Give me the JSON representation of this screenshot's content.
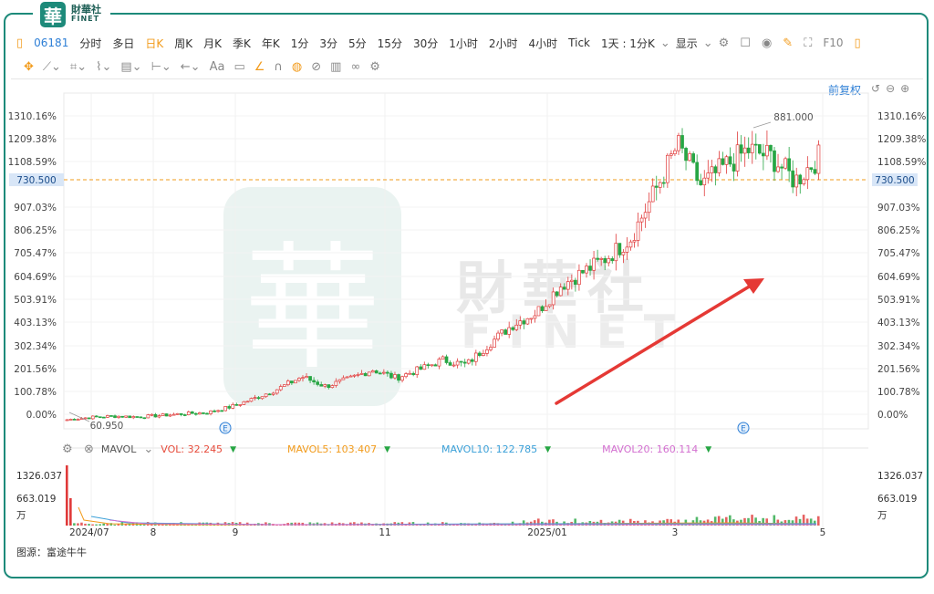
{
  "logo": {
    "mark": "華",
    "cn": "財華社",
    "en": "FINET"
  },
  "toolbar": {
    "code": "06181",
    "periods": [
      "分时",
      "多日",
      "日K",
      "周K",
      "月K",
      "季K",
      "年K",
      "1分",
      "3分",
      "5分",
      "15分",
      "30分",
      "1小时",
      "2小时",
      "4小时",
      "Tick"
    ],
    "active_period": "日K",
    "combo": "1天 : 1分K",
    "display": "显示",
    "f10": "F10"
  },
  "restore_label": "前复权",
  "price_axis": {
    "labels": [
      "1310.16%",
      "1209.38%",
      "1108.59%",
      "907.03%",
      "806.25%",
      "705.47%",
      "604.69%",
      "503.91%",
      "403.13%",
      "302.34%",
      "201.56%",
      "100.78%",
      "0.00%"
    ],
    "current": "730.500"
  },
  "annotations": {
    "high": "881.000",
    "low": "60.950",
    "event_marker": "E"
  },
  "watermark": {
    "cn": "財華社",
    "en": "FINET",
    "mark": "華"
  },
  "indicator": {
    "name": "MAVOL",
    "vol": "VOL: 32.245",
    "mavol5": "MAVOL5: 103.407",
    "mavol10": "MAVOL10: 122.785",
    "mavol20": "MAVOL20: 160.114"
  },
  "volume_axis": {
    "labels": [
      "1326.037",
      "663.019",
      "万"
    ]
  },
  "time_axis": [
    "2024/07",
    "8",
    "9",
    "11",
    "2025/01",
    "3",
    "5"
  ],
  "source": "图源：富途牛牛",
  "colors": {
    "up": "#e03a3a",
    "down": "#27a644",
    "accent": "#f29b1b",
    "frame": "#1d8a7a"
  },
  "chart_data": {
    "type": "candlestick",
    "base_price": 60.95,
    "current_price": 730.5,
    "high": 881.0,
    "low": 60.95,
    "y_axis_unit": "percent change from base",
    "ylim": [
      0,
      1310.16
    ],
    "x_labels": [
      "2024/07",
      "8",
      "9",
      "11",
      "2025/01",
      "3",
      "5"
    ],
    "close_pct_samples": [
      0,
      10,
      15,
      12,
      18,
      25,
      30,
      55,
      90,
      130,
      180,
      140,
      170,
      210,
      175,
      210,
      250,
      230,
      320,
      400,
      450,
      560,
      620,
      680,
      760,
      950,
      1150,
      980,
      1060,
      1130,
      1100,
      1000,
      1099
    ]
  }
}
